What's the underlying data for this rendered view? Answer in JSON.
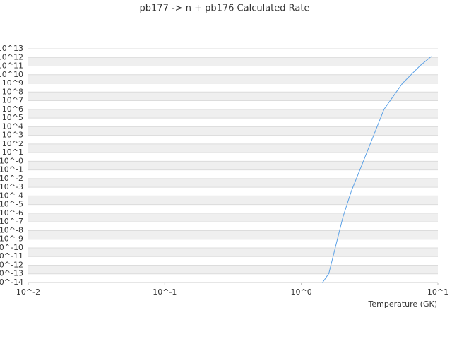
{
  "chart_data": {
    "type": "line",
    "title": "pb177 -> n + pb176 Calculated Rate",
    "x_label": "Temperature (GK)",
    "log_x": true,
    "log_y": true,
    "grid": true,
    "xlim": [
      0.01,
      10
    ],
    "ylim": [
      1e-14,
      10000000000000.0
    ],
    "xticks": [
      {
        "value": 0.01,
        "label": "10^-2"
      },
      {
        "value": 0.1,
        "label": "10^-1"
      },
      {
        "value": 1,
        "label": "10^0"
      },
      {
        "value": 10,
        "label": "10^1"
      }
    ],
    "yticks": [
      {
        "value": 1e-14,
        "label": "10^-14"
      },
      {
        "value": 1e-13,
        "label": "10^-13"
      },
      {
        "value": 1e-12,
        "label": "10^-12"
      },
      {
        "value": 1e-11,
        "label": "10^-11"
      },
      {
        "value": 1e-10,
        "label": "10^-10"
      },
      {
        "value": 1e-09,
        "label": "10^-9"
      },
      {
        "value": 1e-08,
        "label": "10^-8"
      },
      {
        "value": 1e-07,
        "label": "10^-7"
      },
      {
        "value": 1e-06,
        "label": "10^-6"
      },
      {
        "value": 1e-05,
        "label": "10^-5"
      },
      {
        "value": 0.0001,
        "label": "10^-4"
      },
      {
        "value": 0.001,
        "label": "10^-3"
      },
      {
        "value": 0.01,
        "label": "10^-2"
      },
      {
        "value": 0.1,
        "label": "10^-1"
      },
      {
        "value": 1,
        "label": "10^-0"
      },
      {
        "value": 10,
        "label": "10^1"
      },
      {
        "value": 100,
        "label": "10^2"
      },
      {
        "value": 1000,
        "label": "10^3"
      },
      {
        "value": 10000.0,
        "label": "10^4"
      },
      {
        "value": 100000.0,
        "label": "10^5"
      },
      {
        "value": 1000000.0,
        "label": "10^6"
      },
      {
        "value": 10000000.0,
        "label": "10^7"
      },
      {
        "value": 100000000.0,
        "label": "10^8"
      },
      {
        "value": 1000000000.0,
        "label": "10^9"
      },
      {
        "value": 10000000000.0,
        "label": "10^10"
      },
      {
        "value": 100000000000.0,
        "label": "10^11"
      },
      {
        "value": 1000000000000.0,
        "label": "10^12"
      },
      {
        "value": 10000000000000.0,
        "label": "10^13"
      }
    ],
    "x": [
      1.43,
      1.59,
      2.02,
      2.33,
      2.82,
      4.03,
      5.5,
      7.4,
      8.95
    ],
    "series": [
      {
        "name": "pb177 -> n + pb176",
        "color": "#5aa0e6",
        "values": [
          1e-14,
          1.1e-13,
          3.9e-07,
          0.0004,
          0.7,
          1000000.0,
          1000000000.0,
          110000000000.0,
          1300000000000.0
        ]
      }
    ]
  }
}
